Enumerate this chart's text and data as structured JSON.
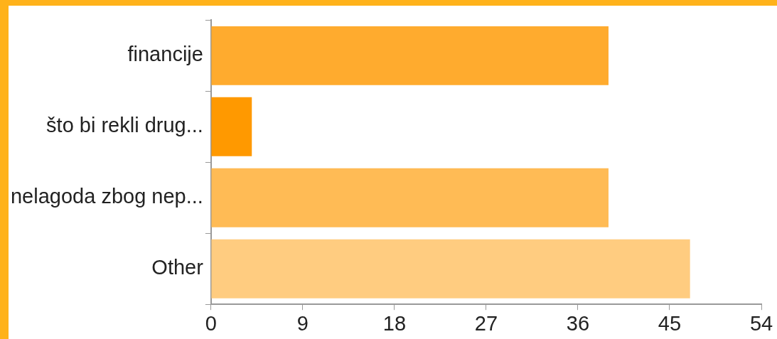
{
  "chart_data": {
    "type": "bar",
    "orientation": "horizontal",
    "categories": [
      "financije",
      "što bi rekli drug...",
      "nelagoda zbog nep...",
      "Other"
    ],
    "values": [
      39,
      4,
      39,
      47
    ],
    "colors": [
      "#ffab2e",
      "#ff9900",
      "#ffbb55",
      "#ffcc80"
    ],
    "xlim": [
      0,
      54
    ],
    "xticks": [
      0,
      9,
      18,
      27,
      36,
      45,
      54
    ]
  }
}
